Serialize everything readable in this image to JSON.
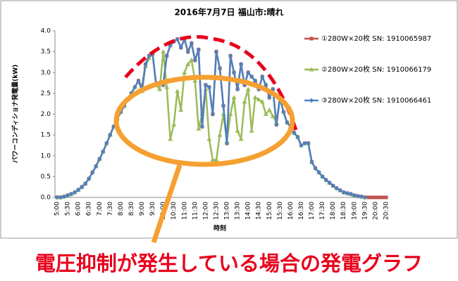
{
  "chart_data": {
    "type": "line",
    "title": "2016年7月7日 福山市:晴れ",
    "x_label": "時刻",
    "y_label": "パワーコンディショナ発電量(kW)",
    "annotation": "電圧抑制が発生している場合の発電グラフ",
    "categories": [
      "5:00",
      null,
      null,
      "5:30",
      null,
      null,
      "6:00",
      null,
      null,
      "6:30",
      null,
      null,
      "7:00",
      null,
      null,
      "7:30",
      null,
      null,
      "8:00",
      null,
      null,
      "8:30",
      null,
      null,
      "9:00",
      null,
      null,
      "9:30",
      null,
      null,
      "10:00",
      null,
      null,
      "10:30",
      null,
      null,
      "11:00",
      null,
      null,
      "11:30",
      null,
      null,
      "12:00",
      null,
      null,
      "12:30",
      null,
      null,
      "13:00",
      null,
      null,
      "13:30",
      null,
      null,
      "14:00",
      null,
      null,
      "14:30",
      null,
      null,
      "15:00",
      null,
      null,
      "15:30",
      null,
      null,
      "16:00",
      null,
      null,
      "16:30",
      null,
      null,
      "17:00",
      null,
      null,
      "17:30",
      null,
      null,
      "18:00",
      null,
      null,
      "18:30",
      null,
      null,
      "19:00",
      null,
      null,
      "19:30",
      null,
      null,
      "20:00",
      null,
      null,
      "20:30"
    ],
    "series": [
      {
        "name": "①280W×20枚 SN: 1910065987",
        "color": "#c0504d",
        "marker": "square",
        "values": [
          0,
          0,
          0.02,
          0.05,
          0.08,
          0.12,
          0.18,
          0.25,
          0.33,
          0.45,
          0.6,
          0.75,
          0.92,
          1.1,
          1.3,
          1.5,
          1.7,
          1.88,
          2.05,
          2.2,
          2.35,
          2.5,
          2.65,
          2.8,
          2.65,
          3.2,
          3.4,
          3.45,
          2.7,
          2.75,
          2.7,
          3.4,
          3.65,
          3.75,
          3.8,
          3.6,
          3.8,
          3.5,
          3.7,
          3.3,
          3.55,
          1.7,
          2.7,
          2.65,
          2.0,
          3.5,
          3.1,
          2.2,
          1.3,
          3.4,
          3.0,
          2.6,
          3.2,
          2.7,
          3.0,
          2.9,
          2.8,
          2.6,
          2.9,
          2.7,
          2.4,
          2.6,
          1.75,
          2.4,
          2.05,
          1.8,
          1.7,
          1.55,
          1.45,
          1.25,
          1.3,
          1.3,
          0.85,
          0.7,
          0.6,
          0.5,
          0.42,
          0.35,
          0.28,
          0.22,
          0.17,
          0.12,
          0.1,
          0.08,
          0.05,
          0.03,
          0.02,
          0,
          0,
          0,
          0,
          0,
          0,
          0
        ]
      },
      {
        "name": "②280W×20枚 SN: 1910066179",
        "color": "#9bbb59",
        "marker": "triangle",
        "values": [
          0,
          0,
          0.02,
          0.05,
          0.08,
          0.12,
          0.18,
          0.25,
          0.33,
          0.45,
          0.6,
          0.75,
          0.92,
          1.1,
          1.3,
          1.5,
          1.7,
          1.88,
          2.05,
          2.2,
          2.35,
          2.5,
          2.65,
          2.8,
          2.55,
          3.15,
          3.35,
          3.45,
          2.7,
          2.6,
          3.5,
          2.65,
          1.4,
          1.75,
          2.55,
          2.1,
          3.0,
          3.2,
          3.3,
          2.8,
          1.65,
          2.0,
          2.6,
          1.4,
          0.9,
          0.9,
          1.5,
          2.0,
          1.35,
          2.0,
          2.4,
          1.6,
          1.4,
          2.3,
          2.6,
          1.6,
          2.4,
          2.35,
          2.3,
          2.0,
          2.1,
          1.95,
          1.8,
          2.4,
          2.05,
          1.8,
          1.7,
          1.55,
          1.45,
          1.25,
          1.3,
          1.3,
          0.85,
          0.7,
          0.6,
          0.5,
          0.42,
          0.35,
          0.28,
          0.22,
          0.17,
          0.12,
          0.1,
          0.08,
          0.05,
          0.03,
          0.02,
          0,
          null,
          null,
          null,
          null,
          null,
          null
        ]
      },
      {
        "name": "③280W×20枚 SN: 1910066461",
        "color": "#4f81bd",
        "marker": "diamond",
        "values": [
          0,
          0,
          0.02,
          0.05,
          0.08,
          0.12,
          0.18,
          0.25,
          0.33,
          0.45,
          0.6,
          0.75,
          0.92,
          1.1,
          1.3,
          1.5,
          1.7,
          1.88,
          2.05,
          2.2,
          2.35,
          2.5,
          2.65,
          2.8,
          2.6,
          3.2,
          3.4,
          3.45,
          2.7,
          2.75,
          2.7,
          3.4,
          3.65,
          3.75,
          3.8,
          3.6,
          3.8,
          3.5,
          3.7,
          3.3,
          3.55,
          1.7,
          2.7,
          2.65,
          2.0,
          3.5,
          3.1,
          2.2,
          1.3,
          3.4,
          3.0,
          2.6,
          3.2,
          2.7,
          3.0,
          2.9,
          2.8,
          2.6,
          2.9,
          2.7,
          2.4,
          2.6,
          1.75,
          2.4,
          2.05,
          1.8,
          1.7,
          1.55,
          1.45,
          1.25,
          1.3,
          1.3,
          0.85,
          0.7,
          0.6,
          0.5,
          0.42,
          0.35,
          0.28,
          0.22,
          0.17,
          0.12,
          0.1,
          0.08,
          0.05,
          0.03,
          0.02,
          0,
          null,
          null,
          null,
          null,
          null,
          null
        ]
      }
    ],
    "ylim": [
      0,
      4
    ],
    "yticks": [
      {
        "value": 0,
        "label": "0.0"
      },
      {
        "value": 0.5,
        "label": "0.5"
      },
      {
        "value": 1,
        "label": "1.0"
      },
      {
        "value": 1.5,
        "label": "1.5"
      },
      {
        "value": 2,
        "label": "2.0"
      },
      {
        "value": 2.5,
        "label": "2.5"
      },
      {
        "value": 3,
        "label": "3.0"
      },
      {
        "value": 3.5,
        "label": "3.5"
      },
      {
        "value": 4,
        "label": "4.0"
      }
    ],
    "grid": false,
    "legend": "right"
  }
}
